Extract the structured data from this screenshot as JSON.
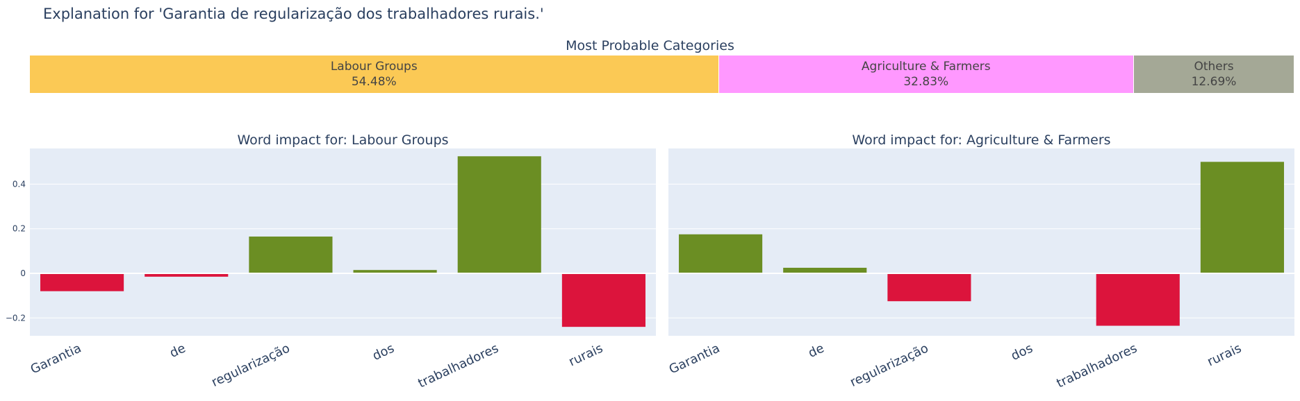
{
  "title": "Explanation for 'Garantia de regularização dos trabalhadores rurais.'",
  "categories_panel": {
    "title": "Most Probable Categories",
    "segments": [
      {
        "label": "Labour Groups",
        "percent_text": "54.48%",
        "value": 54.48,
        "color": "#FBC955"
      },
      {
        "label": "Agriculture & Farmers",
        "percent_text": "32.83%",
        "value": 32.83,
        "color": "#FF98FF"
      },
      {
        "label": "Others",
        "percent_text": "12.69%",
        "value": 12.69,
        "color": "#A4A896"
      }
    ]
  },
  "chart_data": [
    {
      "type": "bar",
      "title": "Word impact for: Labour Groups",
      "categories": [
        "Garantia",
        "de",
        "regularização",
        "dos",
        "trabalhadores",
        "rurais"
      ],
      "values": [
        -0.08,
        -0.015,
        0.165,
        0.015,
        0.525,
        -0.24
      ],
      "ylim": [
        -0.28,
        0.56
      ],
      "yticks": [
        -0.2,
        0,
        0.2,
        0.4
      ],
      "ytick_labels": [
        "−0.2",
        "0",
        "0.2",
        "0.4"
      ],
      "positive_color": "#6B8E23",
      "negative_color": "#DC143C",
      "grid": true
    },
    {
      "type": "bar",
      "title": "Word impact for: Agriculture & Farmers",
      "categories": [
        "Garantia",
        "de",
        "regularização",
        "dos",
        "trabalhadores",
        "rurais"
      ],
      "values": [
        0.175,
        0.025,
        -0.125,
        0.002,
        -0.235,
        0.5
      ],
      "ylim": [
        -0.28,
        0.56
      ],
      "yticks": [
        -0.2,
        0,
        0.2,
        0.4
      ],
      "ytick_labels": [
        "",
        "",
        "",
        ""
      ],
      "positive_color": "#6B8E23",
      "negative_color": "#DC143C",
      "grid": true
    }
  ],
  "colors": {
    "plot_bg": "#E5ECF6",
    "text": "#2a3f5f"
  }
}
